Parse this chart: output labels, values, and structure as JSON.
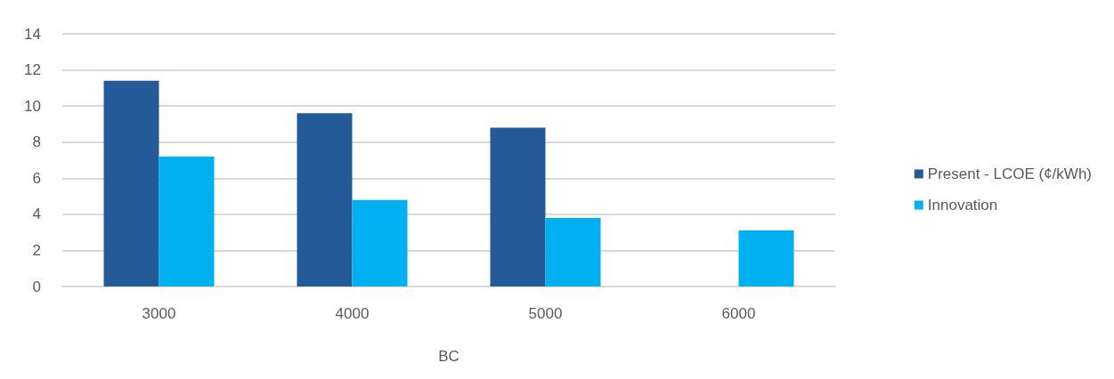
{
  "chart_data": {
    "type": "bar",
    "xlabel": "BC",
    "categories": [
      "3000",
      "4000",
      "5000",
      "6000"
    ],
    "series": [
      {
        "name": "Present - LCOE (¢/kWh)",
        "color": "#255a99",
        "values": [
          11.4,
          9.6,
          8.8,
          null
        ]
      },
      {
        "name": "Innovation",
        "color": "#00b0f0",
        "values": [
          7.2,
          4.8,
          3.8,
          3.1
        ]
      }
    ],
    "ylim": [
      0,
      14
    ],
    "yticks": [
      0,
      2,
      4,
      6,
      8,
      10,
      12,
      14
    ],
    "grid": "y",
    "legend": "right"
  }
}
